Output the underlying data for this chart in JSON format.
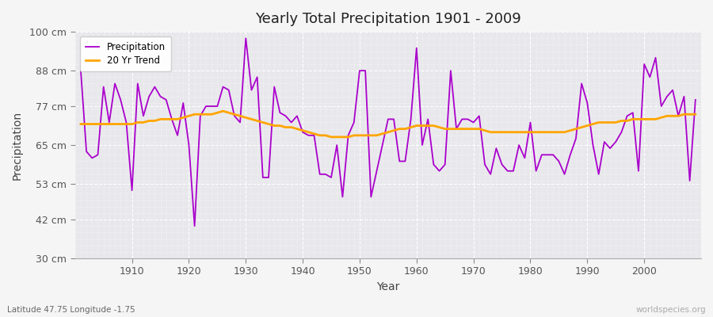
{
  "title": "Yearly Total Precipitation 1901 - 2009",
  "xlabel": "Year",
  "ylabel": "Precipitation",
  "subtitle_left": "Latitude 47.75 Longitude -1.75",
  "subtitle_right": "worldspecies.org",
  "ylim": [
    30,
    100
  ],
  "yticks": [
    30,
    42,
    53,
    65,
    77,
    88,
    100
  ],
  "ytick_labels": [
    "30 cm",
    "42 cm",
    "53 cm",
    "65 cm",
    "77 cm",
    "88 cm",
    "100 cm"
  ],
  "xlim_min": 1900,
  "xlim_max": 2010,
  "xticks": [
    1910,
    1920,
    1930,
    1940,
    1950,
    1960,
    1970,
    1980,
    1990,
    2000
  ],
  "precip_color": "#aa00cc",
  "trend_color": "#ffa500",
  "fig_bg_color": "#f5f5f5",
  "plot_bg_color": "#e8e8ec",
  "grid_color": "#ffffff",
  "years": [
    1901,
    1902,
    1903,
    1904,
    1905,
    1906,
    1907,
    1908,
    1909,
    1910,
    1911,
    1912,
    1913,
    1914,
    1915,
    1916,
    1917,
    1918,
    1919,
    1920,
    1921,
    1922,
    1923,
    1924,
    1925,
    1926,
    1927,
    1928,
    1929,
    1930,
    1931,
    1932,
    1933,
    1934,
    1935,
    1936,
    1937,
    1938,
    1939,
    1940,
    1941,
    1942,
    1943,
    1944,
    1945,
    1946,
    1947,
    1948,
    1949,
    1950,
    1951,
    1952,
    1953,
    1954,
    1955,
    1956,
    1957,
    1958,
    1959,
    1960,
    1961,
    1962,
    1963,
    1964,
    1965,
    1966,
    1967,
    1968,
    1969,
    1970,
    1971,
    1972,
    1973,
    1974,
    1975,
    1976,
    1977,
    1978,
    1979,
    1980,
    1981,
    1982,
    1983,
    1984,
    1985,
    1986,
    1987,
    1988,
    1989,
    1990,
    1991,
    1992,
    1993,
    1994,
    1995,
    1996,
    1997,
    1998,
    1999,
    2000,
    2001,
    2002,
    2003,
    2004,
    2005,
    2006,
    2007,
    2008,
    2009
  ],
  "precipitation": [
    88,
    63,
    61,
    62,
    83,
    72,
    84,
    79,
    72,
    51,
    84,
    74,
    80,
    83,
    80,
    79,
    73,
    68,
    78,
    65,
    40,
    74,
    77,
    77,
    77,
    83,
    82,
    74,
    72,
    98,
    82,
    86,
    55,
    55,
    83,
    75,
    74,
    72,
    74,
    69,
    68,
    68,
    56,
    56,
    55,
    65,
    49,
    68,
    72,
    88,
    88,
    49,
    57,
    65,
    73,
    73,
    60,
    60,
    73,
    95,
    65,
    73,
    59,
    57,
    59,
    88,
    70,
    73,
    73,
    72,
    74,
    59,
    56,
    64,
    59,
    57,
    57,
    65,
    61,
    72,
    57,
    62,
    62,
    62,
    60,
    56,
    62,
    67,
    84,
    78,
    65,
    56,
    66,
    64,
    66,
    69,
    74,
    75,
    57,
    90,
    86,
    92,
    77,
    80,
    82,
    74,
    80,
    54,
    79
  ],
  "trend": [
    71.5,
    71.5,
    71.5,
    71.5,
    71.5,
    71.5,
    71.5,
    71.5,
    71.5,
    71.5,
    72.0,
    72.0,
    72.5,
    72.5,
    73.0,
    73.0,
    73.0,
    73.0,
    73.5,
    74.0,
    74.5,
    74.5,
    74.5,
    74.5,
    75.0,
    75.5,
    75.0,
    74.5,
    74.0,
    73.5,
    73.0,
    72.5,
    72.0,
    71.5,
    71.0,
    71.0,
    70.5,
    70.5,
    70.0,
    69.5,
    69.0,
    68.5,
    68.0,
    68.0,
    67.5,
    67.5,
    67.5,
    67.5,
    68.0,
    68.0,
    68.0,
    68.0,
    68.0,
    68.5,
    69.0,
    69.5,
    70.0,
    70.0,
    70.5,
    71.0,
    71.0,
    71.0,
    71.0,
    70.5,
    70.0,
    70.0,
    70.0,
    70.0,
    70.0,
    70.0,
    70.0,
    69.5,
    69.0,
    69.0,
    69.0,
    69.0,
    69.0,
    69.0,
    69.0,
    69.0,
    69.0,
    69.0,
    69.0,
    69.0,
    69.0,
    69.0,
    69.5,
    70.0,
    70.5,
    71.0,
    71.5,
    72.0,
    72.0,
    72.0,
    72.0,
    72.5,
    72.5,
    73.0,
    73.0,
    73.0,
    73.0,
    73.0,
    73.5,
    74.0,
    74.0,
    74.0,
    74.5,
    74.5,
    74.5
  ]
}
